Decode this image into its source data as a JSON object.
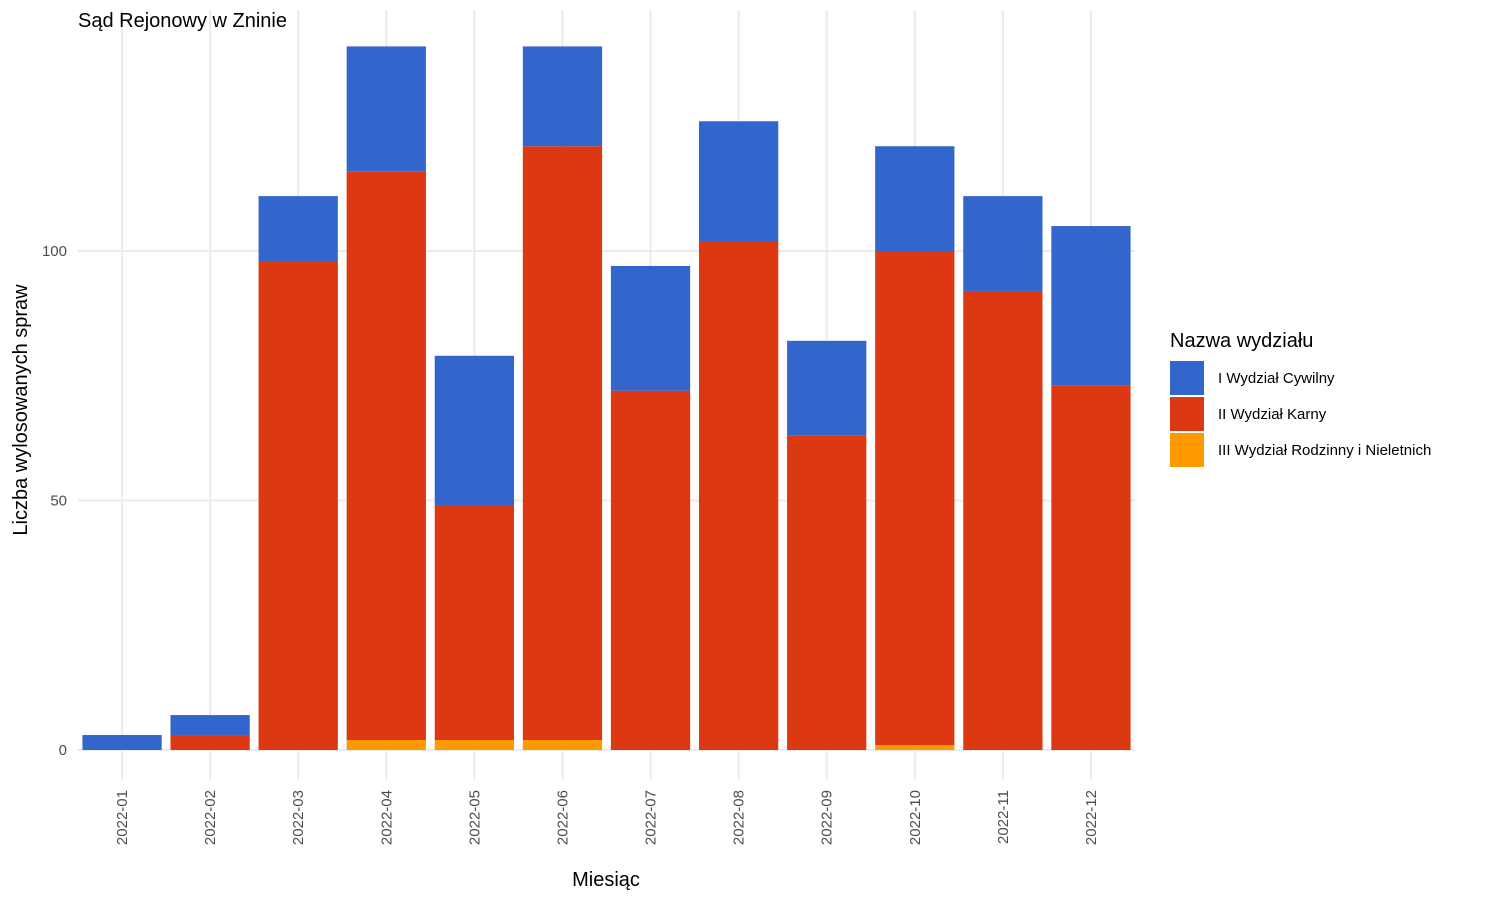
{
  "chart_data": {
    "type": "bar",
    "stacked": true,
    "title": "Sąd Rejonowy w Zninie",
    "xlabel": "Miesiąc",
    "ylabel": "Liczba wylosowanych spraw",
    "ylim": [
      -6,
      147.5
    ],
    "y_ticks": [
      0,
      50,
      100
    ],
    "grid": true,
    "legend_title": "Nazwa wydziału",
    "legend_position": "right",
    "categories": [
      "2022-01",
      "2022-02",
      "2022-03",
      "2022-04",
      "2022-05",
      "2022-06",
      "2022-07",
      "2022-08",
      "2022-09",
      "2022-10",
      "2022-11",
      "2022-12"
    ],
    "series": [
      {
        "name": "III Wydział Rodzinny i Nieletnich",
        "color": "#ff9900",
        "values": [
          0,
          0,
          0,
          2,
          2,
          2,
          0,
          0,
          0,
          1,
          0,
          0
        ]
      },
      {
        "name": "II Wydział Karny",
        "color": "#dc3912",
        "values": [
          0,
          3,
          98,
          114,
          47,
          119,
          72,
          102,
          63,
          99,
          92,
          73
        ]
      },
      {
        "name": "I Wydział Cywilny",
        "color": "#3366cc",
        "values": [
          3,
          4,
          13,
          25,
          30,
          20,
          25,
          24,
          19,
          21,
          19,
          32
        ]
      }
    ],
    "legend_order": [
      "I Wydział Cywilny",
      "II Wydział Karny",
      "III Wydział Rodzinny i Nieletnich"
    ]
  }
}
